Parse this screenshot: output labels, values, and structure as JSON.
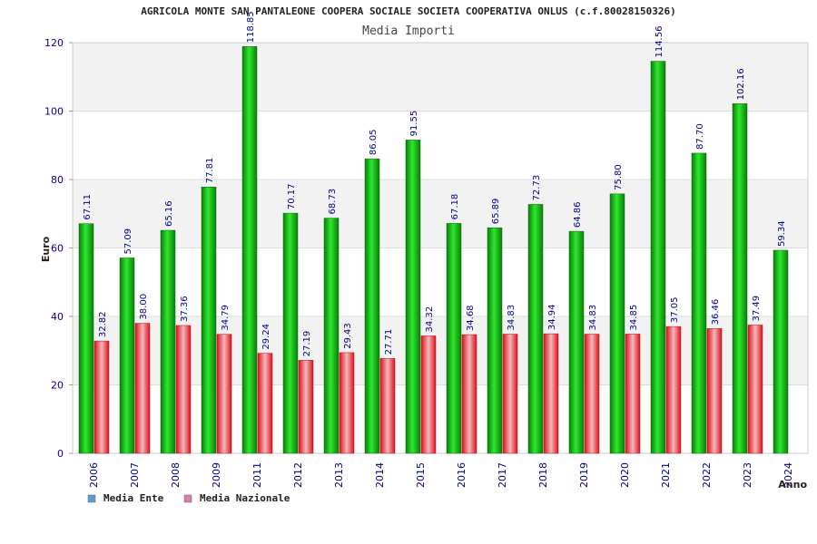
{
  "chart_data": {
    "type": "bar",
    "title": "AGRICOLA MONTE SAN PANTALEONE COOPERA SOCIALE SOCIETA COOPERATIVA ONLUS (c.f.80028150326)",
    "subtitle": "Media Importi",
    "xlabel": "Anno",
    "ylabel": "Euro",
    "ylim": [
      0,
      120
    ],
    "yticks": [
      "0",
      "20",
      "40",
      "60",
      "80",
      "100",
      "120"
    ],
    "grid": "horizontal bands",
    "legend_position": "bottom-left",
    "categories": [
      "2006",
      "2007",
      "2008",
      "2009",
      "2011",
      "2012",
      "2013",
      "2014",
      "2015",
      "2016",
      "2017",
      "2018",
      "2019",
      "2020",
      "2021",
      "2022",
      "2023",
      "2024"
    ],
    "series": [
      {
        "name": "Media Ente",
        "color": "#1fbf1f",
        "legend_color": "#5b9bd5",
        "values": [
          67.11,
          57.09,
          65.16,
          77.81,
          118.85,
          70.17,
          68.73,
          86.05,
          91.55,
          67.18,
          65.89,
          72.73,
          64.86,
          75.8,
          114.56,
          87.7,
          102.16,
          59.34
        ],
        "labels": [
          "67.11",
          "57.09",
          "65.16",
          "77.81",
          "118.85",
          "70.17",
          "68.73",
          "86.05",
          "91.55",
          "67.18",
          "65.89",
          "72.73",
          "64.86",
          "75.80",
          "114.56",
          "87.70",
          "102.16",
          "59.34"
        ]
      },
      {
        "name": "Media Nazionale",
        "color": "#e8222e",
        "legend_color": "#d97fb0",
        "values": [
          32.82,
          38.0,
          37.36,
          34.79,
          29.24,
          27.19,
          29.43,
          27.71,
          34.32,
          34.68,
          34.83,
          34.94,
          34.83,
          34.85,
          37.05,
          36.46,
          37.49,
          null
        ],
        "labels": [
          "32.82",
          "38.00",
          "37.36",
          "34.79",
          "29.24",
          "27.19",
          "29.43",
          "27.71",
          "34.32",
          "34.68",
          "34.83",
          "34.94",
          "34.83",
          "34.85",
          "37.05",
          "36.46",
          "37.49",
          ""
        ]
      }
    ]
  }
}
